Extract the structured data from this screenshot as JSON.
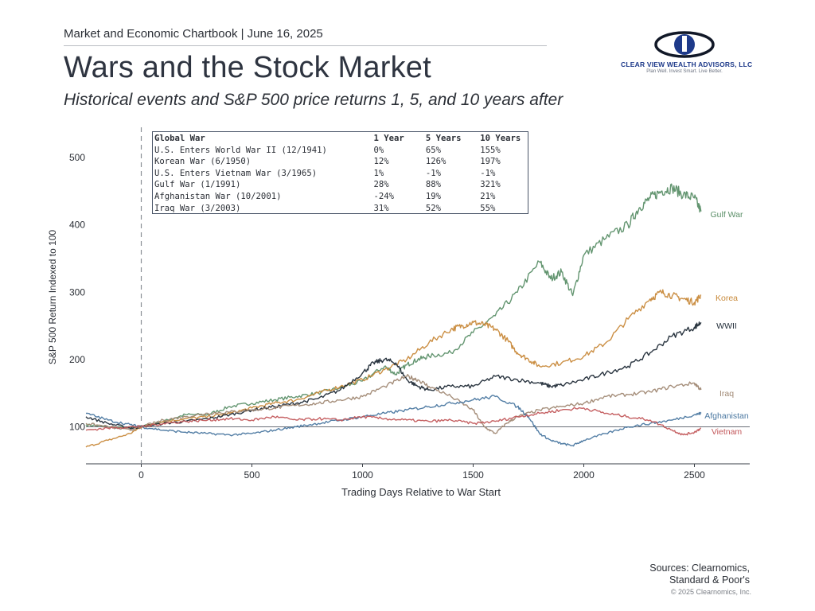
{
  "header": {
    "chartbook": "Market and Economic Chartbook | June 16, 2025",
    "title": "Wars and the Stock Market",
    "subtitle": "Historical events and S&P 500 price returns 1, 5, and 10 years after"
  },
  "logo": {
    "name": "CLEAR VIEW WEALTH ADVISORS, LLC",
    "tagline": "Plan Well. Invest Smart. Live Better.",
    "icon": "eye-icon",
    "colors": {
      "iris": "#1e3a8a",
      "lash": "#111827",
      "pupil": "#ffffff"
    }
  },
  "table": {
    "headers": [
      "Global War",
      "1 Year",
      "5 Years",
      "10 Years"
    ],
    "rows": [
      [
        "U.S. Enters World War II (12/1941)",
        "0%",
        "65%",
        "155%"
      ],
      [
        "Korean War (6/1950)",
        "12%",
        "126%",
        "197%"
      ],
      [
        "U.S. Enters Vietnam War (3/1965)",
        "1%",
        "-1%",
        "-1%"
      ],
      [
        "Gulf War (1/1991)",
        "28%",
        "88%",
        "321%"
      ],
      [
        "Afghanistan War (10/2001)",
        "-24%",
        "19%",
        "21%"
      ],
      [
        "Iraq War (3/2003)",
        "31%",
        "52%",
        "55%"
      ]
    ]
  },
  "chart_data": {
    "type": "line",
    "title": "",
    "xlabel": "Trading Days Relative to War Start",
    "ylabel": "S&P 500 Return Indexed to 100",
    "xlim": [
      -250,
      2750
    ],
    "ylim": [
      45,
      545
    ],
    "xticks": [
      0,
      500,
      1000,
      1500,
      2000,
      2500
    ],
    "yticks": [
      100,
      200,
      300,
      400,
      500
    ],
    "reference_line_y": 100,
    "vertical_dashed_line_x": 0,
    "grid": false,
    "legend": "direct labels at line ends",
    "series": [
      {
        "name": "Gulf War",
        "color": "#5b8f68",
        "points": [
          [
            -250,
            103
          ],
          [
            -150,
            100
          ],
          [
            -50,
            98
          ],
          [
            0,
            100
          ],
          [
            100,
            108
          ],
          [
            200,
            118
          ],
          [
            300,
            118
          ],
          [
            400,
            130
          ],
          [
            500,
            135
          ],
          [
            600,
            140
          ],
          [
            700,
            145
          ],
          [
            800,
            150
          ],
          [
            900,
            158
          ],
          [
            1000,
            168
          ],
          [
            1100,
            190
          ],
          [
            1150,
            178
          ],
          [
            1200,
            192
          ],
          [
            1250,
            200
          ],
          [
            1300,
            205
          ],
          [
            1400,
            210
          ],
          [
            1500,
            240
          ],
          [
            1600,
            265
          ],
          [
            1700,
            300
          ],
          [
            1800,
            345
          ],
          [
            1850,
            320
          ],
          [
            1900,
            330
          ],
          [
            1950,
            295
          ],
          [
            2000,
            355
          ],
          [
            2100,
            380
          ],
          [
            2200,
            400
          ],
          [
            2250,
            425
          ],
          [
            2300,
            440
          ],
          [
            2350,
            450
          ],
          [
            2400,
            455
          ],
          [
            2450,
            445
          ],
          [
            2500,
            440
          ],
          [
            2530,
            420
          ]
        ]
      },
      {
        "name": "Korea",
        "color": "#c8893a",
        "points": [
          [
            -250,
            70
          ],
          [
            -150,
            80
          ],
          [
            -50,
            90
          ],
          [
            0,
            100
          ],
          [
            100,
            108
          ],
          [
            200,
            112
          ],
          [
            300,
            115
          ],
          [
            400,
            120
          ],
          [
            500,
            128
          ],
          [
            600,
            135
          ],
          [
            700,
            140
          ],
          [
            800,
            150
          ],
          [
            900,
            160
          ],
          [
            1000,
            170
          ],
          [
            1100,
            185
          ],
          [
            1200,
            200
          ],
          [
            1300,
            225
          ],
          [
            1400,
            245
          ],
          [
            1450,
            250
          ],
          [
            1500,
            255
          ],
          [
            1550,
            252
          ],
          [
            1600,
            245
          ],
          [
            1650,
            230
          ],
          [
            1700,
            210
          ],
          [
            1750,
            200
          ],
          [
            1800,
            190
          ],
          [
            1900,
            195
          ],
          [
            2000,
            205
          ],
          [
            2100,
            225
          ],
          [
            2200,
            260
          ],
          [
            2300,
            290
          ],
          [
            2350,
            300
          ],
          [
            2400,
            295
          ],
          [
            2450,
            290
          ],
          [
            2500,
            285
          ],
          [
            2530,
            295
          ]
        ]
      },
      {
        "name": "WWII",
        "color": "#1f2a36",
        "points": [
          [
            -250,
            115
          ],
          [
            -150,
            105
          ],
          [
            -50,
            98
          ],
          [
            0,
            100
          ],
          [
            100,
            105
          ],
          [
            200,
            108
          ],
          [
            300,
            112
          ],
          [
            400,
            118
          ],
          [
            500,
            125
          ],
          [
            600,
            130
          ],
          [
            700,
            135
          ],
          [
            800,
            142
          ],
          [
            900,
            155
          ],
          [
            1000,
            180
          ],
          [
            1050,
            195
          ],
          [
            1100,
            200
          ],
          [
            1150,
            195
          ],
          [
            1200,
            170
          ],
          [
            1250,
            160
          ],
          [
            1300,
            155
          ],
          [
            1400,
            160
          ],
          [
            1500,
            160
          ],
          [
            1600,
            175
          ],
          [
            1700,
            170
          ],
          [
            1800,
            165
          ],
          [
            1850,
            160
          ],
          [
            1900,
            162
          ],
          [
            2000,
            170
          ],
          [
            2100,
            180
          ],
          [
            2200,
            190
          ],
          [
            2300,
            210
          ],
          [
            2400,
            235
          ],
          [
            2500,
            248
          ],
          [
            2530,
            255
          ]
        ]
      },
      {
        "name": "Iraq",
        "color": "#a08873",
        "points": [
          [
            -250,
            105
          ],
          [
            -150,
            100
          ],
          [
            -50,
            95
          ],
          [
            0,
            100
          ],
          [
            100,
            110
          ],
          [
            200,
            115
          ],
          [
            300,
            120
          ],
          [
            400,
            122
          ],
          [
            500,
            125
          ],
          [
            600,
            128
          ],
          [
            700,
            132
          ],
          [
            800,
            135
          ],
          [
            900,
            140
          ],
          [
            1000,
            145
          ],
          [
            1100,
            160
          ],
          [
            1200,
            175
          ],
          [
            1250,
            170
          ],
          [
            1300,
            160
          ],
          [
            1400,
            145
          ],
          [
            1500,
            125
          ],
          [
            1550,
            100
          ],
          [
            1600,
            90
          ],
          [
            1650,
            105
          ],
          [
            1700,
            115
          ],
          [
            1800,
            125
          ],
          [
            1900,
            130
          ],
          [
            2000,
            135
          ],
          [
            2100,
            145
          ],
          [
            2200,
            148
          ],
          [
            2300,
            152
          ],
          [
            2400,
            160
          ],
          [
            2500,
            165
          ],
          [
            2530,
            155
          ]
        ]
      },
      {
        "name": "Afghanistan",
        "color": "#4a77a0",
        "points": [
          [
            -250,
            120
          ],
          [
            -150,
            110
          ],
          [
            -50,
            103
          ],
          [
            0,
            100
          ],
          [
            100,
            95
          ],
          [
            200,
            92
          ],
          [
            300,
            90
          ],
          [
            400,
            88
          ],
          [
            500,
            90
          ],
          [
            600,
            95
          ],
          [
            700,
            100
          ],
          [
            800,
            105
          ],
          [
            900,
            110
          ],
          [
            1000,
            115
          ],
          [
            1100,
            120
          ],
          [
            1200,
            125
          ],
          [
            1300,
            130
          ],
          [
            1400,
            135
          ],
          [
            1500,
            140
          ],
          [
            1600,
            145
          ],
          [
            1700,
            130
          ],
          [
            1750,
            115
          ],
          [
            1800,
            90
          ],
          [
            1850,
            80
          ],
          [
            1900,
            75
          ],
          [
            1950,
            72
          ],
          [
            2000,
            80
          ],
          [
            2100,
            90
          ],
          [
            2200,
            100
          ],
          [
            2300,
            105
          ],
          [
            2400,
            110
          ],
          [
            2500,
            118
          ],
          [
            2530,
            120
          ]
        ]
      },
      {
        "name": "Vietnam",
        "color": "#c2575a",
        "points": [
          [
            -250,
            95
          ],
          [
            -150,
            98
          ],
          [
            -50,
            100
          ],
          [
            0,
            100
          ],
          [
            100,
            105
          ],
          [
            200,
            108
          ],
          [
            300,
            110
          ],
          [
            400,
            112
          ],
          [
            500,
            110
          ],
          [
            600,
            115
          ],
          [
            700,
            110
          ],
          [
            800,
            112
          ],
          [
            900,
            110
          ],
          [
            1000,
            115
          ],
          [
            1100,
            112
          ],
          [
            1200,
            110
          ],
          [
            1300,
            108
          ],
          [
            1400,
            110
          ],
          [
            1500,
            105
          ],
          [
            1600,
            108
          ],
          [
            1700,
            115
          ],
          [
            1800,
            120
          ],
          [
            1900,
            125
          ],
          [
            2000,
            128
          ],
          [
            2100,
            120
          ],
          [
            2200,
            115
          ],
          [
            2300,
            110
          ],
          [
            2400,
            95
          ],
          [
            2450,
            88
          ],
          [
            2500,
            92
          ],
          [
            2530,
            98
          ]
        ]
      }
    ]
  },
  "sources": {
    "line1": "Sources: Clearnomics,",
    "line2": "Standard & Poor's",
    "copyright": "© 2025 Clearnomics, Inc."
  }
}
